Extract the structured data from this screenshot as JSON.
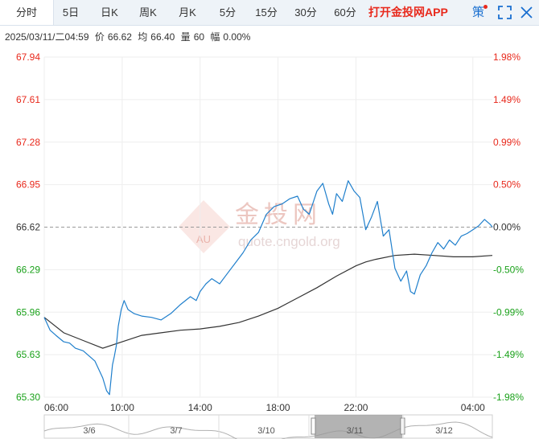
{
  "tabs": [
    {
      "label": "分时",
      "active": true
    },
    {
      "label": "5日"
    },
    {
      "label": "日K"
    },
    {
      "label": "周K"
    },
    {
      "label": "月K"
    },
    {
      "label": "5分"
    },
    {
      "label": "15分"
    },
    {
      "label": "30分"
    },
    {
      "label": "60分"
    }
  ],
  "app_link": "打开金投网APP",
  "strategy_label": "策",
  "info": {
    "datetime": "2025/03/11/二04:59",
    "price_label": "价",
    "price": "66.62",
    "avg_label": "均",
    "avg": "66.40",
    "volume_label": "量",
    "volume": "60",
    "change_label": "幅",
    "change": "0.00%"
  },
  "watermark": {
    "cn": "金投网",
    "en": "quote.cngold.org",
    "badge": "AU"
  },
  "colors": {
    "up": "#e8291c",
    "down": "#1aa11a",
    "price_line": "#1f7fcc",
    "avg_line": "#333333",
    "accent": "#1a6fd0"
  },
  "chart_data": {
    "type": "line",
    "title": "",
    "y_ticks": [
      "67.94",
      "67.61",
      "67.28",
      "66.95",
      "66.62",
      "66.29",
      "65.96",
      "65.63",
      "65.30"
    ],
    "pct_ticks": [
      "1.98%",
      "1.49%",
      "0.99%",
      "0.50%",
      "0.00%",
      "-0.50%",
      "-0.99%",
      "-1.49%",
      "-1.98%"
    ],
    "ylim": [
      65.3,
      67.94
    ],
    "reference_price": 66.62,
    "x_ticks": [
      "06:00",
      "10:00",
      "14:00",
      "18:00",
      "22:00",
      "04:00"
    ],
    "x_tick_positions_hours": [
      0,
      4,
      8,
      12,
      16,
      22
    ],
    "x_range_hours": [
      0,
      23
    ],
    "grid": true,
    "series": [
      {
        "name": "价",
        "x": [
          0,
          0.3,
          0.6,
          1.0,
          1.3,
          1.6,
          2.0,
          2.3,
          2.6,
          3.0,
          3.2,
          3.35,
          3.5,
          3.6,
          3.7,
          3.8,
          3.95,
          4.1,
          4.3,
          4.6,
          5.0,
          5.5,
          6.0,
          6.5,
          7.0,
          7.5,
          7.8,
          8.0,
          8.3,
          8.6,
          9.0,
          9.4,
          9.8,
          10.2,
          10.6,
          11.0,
          11.4,
          11.8,
          12.2,
          12.6,
          13.0,
          13.3,
          13.6,
          14.0,
          14.3,
          14.6,
          14.8,
          15.0,
          15.3,
          15.6,
          15.9,
          16.2,
          16.5,
          16.8,
          17.1,
          17.4,
          17.7,
          18.0,
          18.3,
          18.6,
          18.8,
          19.0,
          19.3,
          19.6,
          19.9,
          20.2,
          20.5,
          20.8,
          21.1,
          21.4,
          21.7,
          22.0,
          22.3,
          22.6,
          22.9,
          23.0
        ],
        "y": [
          65.92,
          65.82,
          65.78,
          65.73,
          65.72,
          65.68,
          65.66,
          65.62,
          65.58,
          65.45,
          65.35,
          65.32,
          65.55,
          65.62,
          65.7,
          65.85,
          65.98,
          66.05,
          65.98,
          65.95,
          65.93,
          65.92,
          65.9,
          65.95,
          66.02,
          66.08,
          66.05,
          66.12,
          66.18,
          66.22,
          66.18,
          66.26,
          66.34,
          66.42,
          66.52,
          66.58,
          66.72,
          66.78,
          66.8,
          66.84,
          66.86,
          66.76,
          66.72,
          66.9,
          66.96,
          66.8,
          66.72,
          66.88,
          66.82,
          66.98,
          66.9,
          66.85,
          66.6,
          66.7,
          66.82,
          66.55,
          66.6,
          66.3,
          66.2,
          66.28,
          66.12,
          66.1,
          66.25,
          66.32,
          66.42,
          66.5,
          66.45,
          66.52,
          66.48,
          66.55,
          66.57,
          66.6,
          66.63,
          66.68,
          66.64,
          66.62
        ]
      },
      {
        "name": "均",
        "x": [
          0,
          1,
          2,
          3,
          4,
          5,
          6,
          7,
          8,
          9,
          10,
          11,
          12,
          13,
          14,
          15,
          16,
          16.5,
          17,
          18,
          19,
          20,
          21,
          22,
          23
        ],
        "y": [
          65.92,
          65.8,
          65.74,
          65.68,
          65.73,
          65.78,
          65.8,
          65.82,
          65.83,
          65.85,
          65.88,
          65.93,
          65.99,
          66.07,
          66.15,
          66.24,
          66.32,
          66.35,
          66.37,
          66.4,
          66.41,
          66.4,
          66.39,
          66.39,
          66.4
        ]
      }
    ]
  },
  "navigator": {
    "dates": [
      "3/6",
      "3/7",
      "3/10",
      "3/11",
      "3/12"
    ]
  }
}
